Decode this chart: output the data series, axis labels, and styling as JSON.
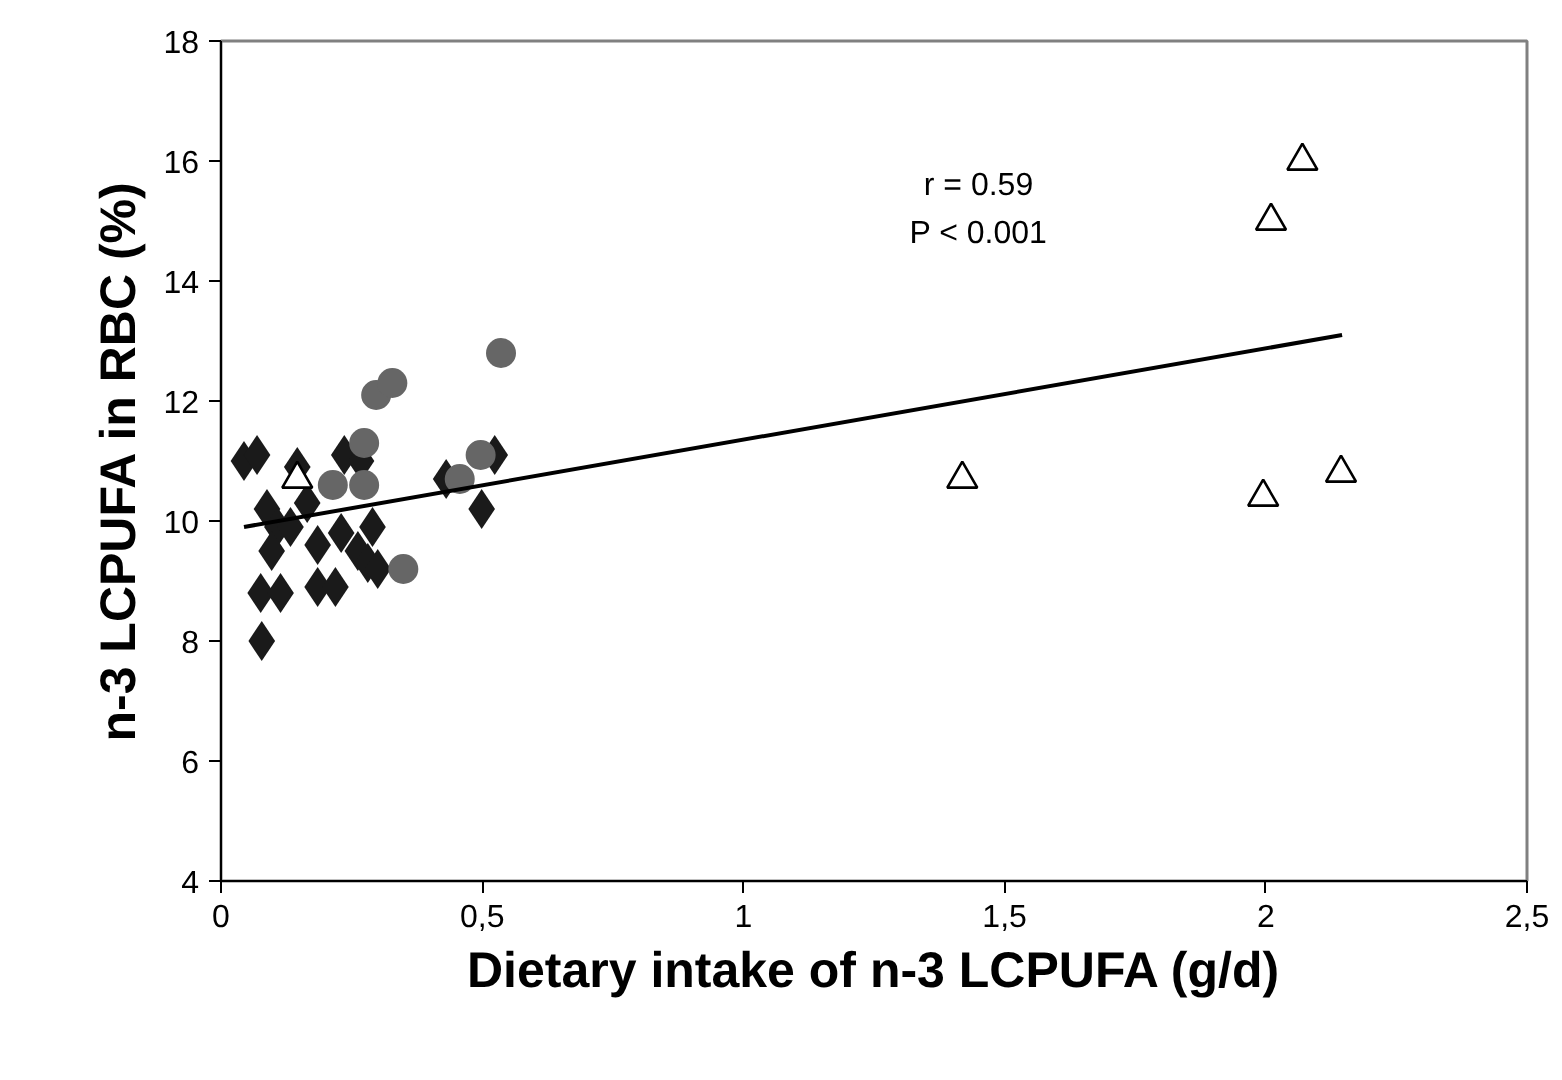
{
  "chart_data": {
    "type": "scatter",
    "xlabel": "Dietary intake of n-3 LCPUFA (g/d)",
    "ylabel": "n-3 LCPUFA in RBC (%)",
    "xlim": [
      0,
      2.5
    ],
    "ylim": [
      4,
      18
    ],
    "xticks": [
      0,
      {
        "value": 0.5,
        "label": "0,5"
      },
      1,
      {
        "value": 1.5,
        "label": "1,5"
      },
      2,
      {
        "value": 2.5,
        "label": "2,5"
      }
    ],
    "yticks": [
      4,
      6,
      8,
      10,
      12,
      14,
      16,
      18
    ],
    "grid": false,
    "annotations": [
      "r = 0.59",
      "P < 0.001"
    ],
    "series": [
      {
        "marker": "diamond",
        "color": "#1a1a1a",
        "x": [
          0.044,
          0.069,
          0.146,
          0.236,
          0.268,
          0.088,
          0.165,
          0.108,
          0.133,
          0.185,
          0.23,
          0.262,
          0.29,
          0.097,
          0.281,
          0.3,
          0.076,
          0.114,
          0.185,
          0.219,
          0.078,
          0.431,
          0.524,
          0.499
        ],
        "values": [
          11.0,
          11.1,
          10.9,
          11.1,
          11.0,
          10.2,
          10.3,
          9.9,
          9.9,
          9.6,
          9.8,
          9.5,
          9.9,
          9.5,
          9.3,
          9.2,
          8.8,
          8.8,
          8.9,
          8.9,
          8.0,
          10.7,
          11.1,
          10.2
        ]
      },
      {
        "marker": "circle",
        "color": "#666666",
        "x": [
          0.536,
          0.297,
          0.328,
          0.274,
          0.214,
          0.274,
          0.349,
          0.457,
          0.497
        ],
        "values": [
          12.8,
          12.1,
          12.3,
          11.3,
          10.6,
          10.6,
          9.2,
          10.7,
          11.1
        ]
      },
      {
        "marker": "triangle",
        "color": "#000000",
        "x": [
          0.146,
          1.419,
          1.995,
          2.144,
          2.01,
          2.07
        ],
        "values": [
          10.7,
          10.7,
          10.4,
          10.8,
          15.0,
          16.0
        ]
      },
      {
        "type": "line",
        "color": "#000000",
        "x": [
          0.044,
          2.146
        ],
        "values": [
          9.9,
          13.1
        ]
      }
    ]
  }
}
